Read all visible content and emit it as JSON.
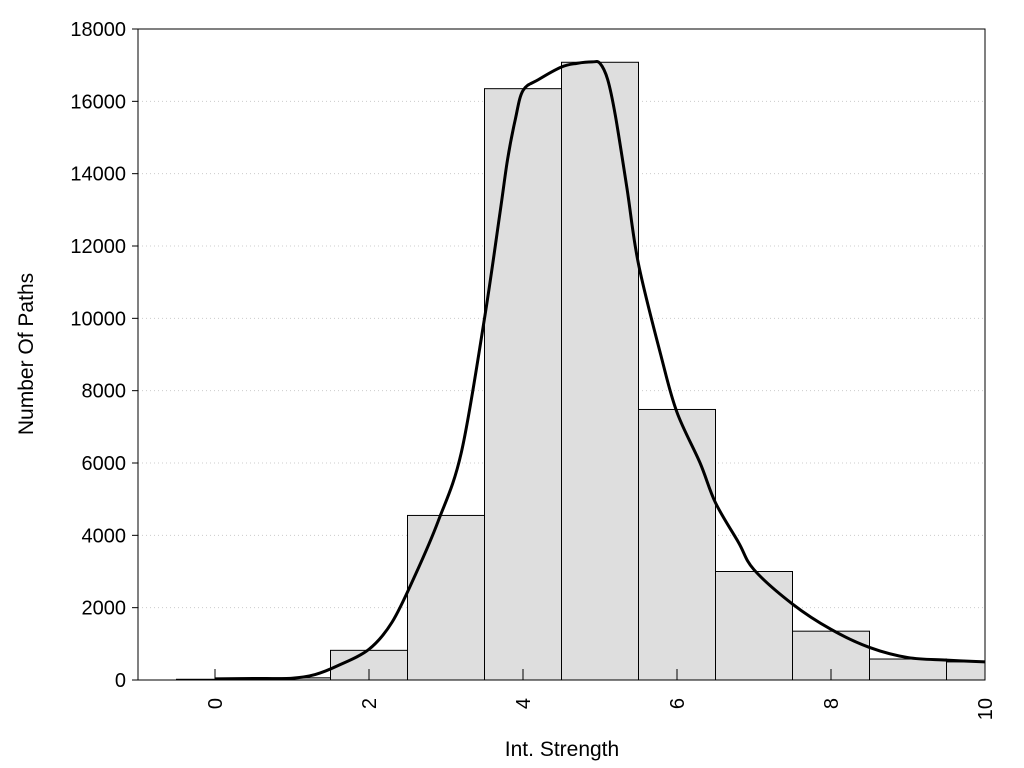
{
  "chart_data": {
    "type": "bar",
    "title": "",
    "xlabel": "Int. Strength",
    "ylabel": "Number Of Paths",
    "xlim": [
      -1,
      10
    ],
    "ylim": [
      0,
      18000
    ],
    "xticks": [
      "0",
      "2",
      "4",
      "6",
      "8",
      "10"
    ],
    "yticks": [
      "0",
      "2000",
      "4000",
      "6000",
      "8000",
      "10000",
      "12000",
      "14000",
      "16000",
      "18000"
    ],
    "grid": "horizontal dotted",
    "bin_width": 1,
    "bins": [
      {
        "center": 0,
        "value": 20
      },
      {
        "center": 1,
        "value": 60
      },
      {
        "center": 2,
        "value": 820
      },
      {
        "center": 3,
        "value": 4550
      },
      {
        "center": 4,
        "value": 16350
      },
      {
        "center": 5,
        "value": 17080
      },
      {
        "center": 6,
        "value": 7480
      },
      {
        "center": 7,
        "value": 3000
      },
      {
        "center": 8,
        "value": 1350
      },
      {
        "center": 9,
        "value": 580
      },
      {
        "center": 10,
        "value": 500
      }
    ],
    "curve": {
      "x": [
        0,
        0.5,
        1,
        1.3,
        1.6,
        2,
        2.3,
        2.6,
        2.9,
        3.2,
        3.5,
        3.7,
        3.8,
        3.9,
        4,
        4.2,
        4.5,
        4.7,
        4.9,
        5,
        5.1,
        5.2,
        5.35,
        5.5,
        5.8,
        6,
        6.3,
        6.5,
        6.8,
        7,
        7.5,
        8,
        8.5,
        9,
        9.5,
        10
      ],
      "y": [
        30,
        40,
        50,
        150,
        400,
        850,
        1600,
        2900,
        4400,
        6300,
        10000,
        12900,
        14400,
        15500,
        16300,
        16600,
        16950,
        17050,
        17090,
        17050,
        16600,
        15600,
        13600,
        11500,
        8900,
        7400,
        6000,
        4900,
        3800,
        3050,
        2100,
        1400,
        900,
        620,
        550,
        500
      ]
    },
    "colors": {
      "bar_fill": "#dedede",
      "bar_stroke": "#000000",
      "curve": "#000000",
      "grid": "#cccccc"
    }
  }
}
